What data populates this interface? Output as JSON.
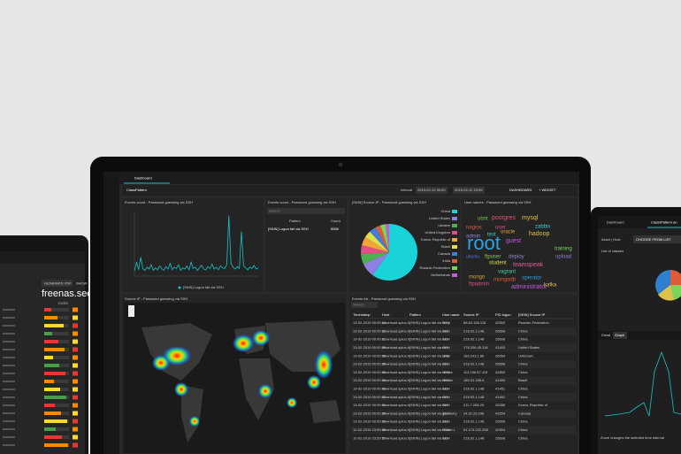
{
  "laptop": {
    "tab": "Dashboard",
    "dashboard_title": "ClassPattern",
    "interval_label": "Interval",
    "date_from": "2019-02-12 00:00",
    "date_to": "2019-02-12 23:59",
    "dashboard_button": "DASHBOARD",
    "widget_button": "+ WIDGET",
    "events_count": {
      "type": "line",
      "title": "Events count - Password guessing via SSH",
      "legend": "[SKIN] Logon fail via SSH",
      "color": "#19c3c8",
      "ylim": [
        0,
        100
      ],
      "values": [
        8,
        22,
        10,
        30,
        12,
        9,
        14,
        11,
        18,
        9,
        13,
        10,
        16,
        12,
        9,
        15,
        11,
        20,
        10,
        14,
        12,
        18,
        9,
        13,
        11,
        16,
        10,
        22,
        12,
        14,
        9,
        13,
        17,
        11,
        10,
        15,
        12,
        19,
        11,
        14,
        10,
        16,
        13,
        12,
        18,
        95,
        20,
        14,
        11,
        15,
        12,
        70,
        16,
        13,
        10,
        14,
        12,
        17,
        11,
        13
      ]
    },
    "pattern_table": {
      "title": "Events count - Password guessing via SSH",
      "search": "Search",
      "headers": [
        "Pattern",
        "Count"
      ],
      "rows": [
        [
          "[SKIN] Logon fail via SSH",
          "8585"
        ]
      ]
    },
    "source_ip": {
      "type": "pie",
      "title": "[SKIN] Source IP - Password guessing via SSH",
      "slices": [
        {
          "name": "China",
          "value": 60,
          "color": "#19d3d8"
        },
        {
          "name": "United States",
          "value": 8,
          "color": "#8f7fe0"
        },
        {
          "name": "Ukraine",
          "value": 6,
          "color": "#4caf50"
        },
        {
          "name": "United Kingdom",
          "value": 5,
          "color": "#e04f8a"
        },
        {
          "name": "Korea, Republic of",
          "value": 5,
          "color": "#f2a33a"
        },
        {
          "name": "Brazil",
          "value": 4,
          "color": "#e2e04a"
        },
        {
          "name": "Canada",
          "value": 4,
          "color": "#3f7de0"
        },
        {
          "name": "India",
          "value": 3,
          "color": "#e05a3a"
        },
        {
          "name": "Russian Federation",
          "value": 3,
          "color": "#7bd35a"
        },
        {
          "name": "Netherlands",
          "value": 2,
          "color": "#c35ae0"
        }
      ]
    },
    "user_names": {
      "title": "User names - Password guessing via SSH",
      "words": [
        {
          "text": "root",
          "color": "#2fa3e0"
        },
        {
          "text": "postgres",
          "color": "#e0567a"
        },
        {
          "text": "ubnt",
          "color": "#7fc24a"
        },
        {
          "text": "mysql",
          "color": "#e0c14a"
        },
        {
          "text": "nagios",
          "color": "#e05a3a"
        },
        {
          "text": "admin",
          "color": "#8f7fe0"
        },
        {
          "text": "test",
          "color": "#3fd0d0"
        },
        {
          "text": "oracle",
          "color": "#e0a03a"
        },
        {
          "text": "guest",
          "color": "#c35ae0"
        },
        {
          "text": "user",
          "color": "#e04f8a"
        },
        {
          "text": "ftpuser",
          "color": "#7bd35a"
        },
        {
          "text": "hadoop",
          "color": "#e0c14a"
        },
        {
          "text": "ubuntu",
          "color": "#3f7de0"
        },
        {
          "text": "student",
          "color": "#e0e04a"
        },
        {
          "text": "teamspeak",
          "color": "#e05a9a"
        },
        {
          "text": "deploy",
          "color": "#8f7fe0"
        },
        {
          "text": "vagrant",
          "color": "#3fd0a0"
        },
        {
          "text": "mongo",
          "color": "#e0a03a"
        },
        {
          "text": "mongodb",
          "color": "#e05a3a"
        },
        {
          "text": "operator",
          "color": "#2fa3e0"
        },
        {
          "text": "administrator",
          "color": "#c35ae0"
        },
        {
          "text": "ftpadmin",
          "color": "#e04f8a"
        },
        {
          "text": "training",
          "color": "#7bd35a"
        },
        {
          "text": "kafka",
          "color": "#e0c14a"
        },
        {
          "text": "zabbix",
          "color": "#3fd0d0"
        },
        {
          "text": "upload",
          "color": "#8f7fe0"
        }
      ]
    },
    "map": {
      "title": "Source IP - Password guessing via SSH"
    },
    "events_table": {
      "title": "Events list - Password guessing via SSH",
      "search": "Search",
      "headers": [
        "Timestamp",
        "Host",
        "Pattern",
        "User name",
        "Source IP",
        "PID logon",
        "[SKIN] Source IP"
      ],
      "rows": [
        [
          "13-02-2019 00:00:14",
          "download.sploo.it",
          "[SKIN] Logon fail via SSH",
          "ftuny",
          "86.84.156.118",
          "42903",
          "Russian Federation"
        ],
        [
          "13-02-2019 00:00:12",
          "download.sploo.it",
          "[SKIN] Logon fail via SSH",
          "root",
          "218.92.1.148",
          "25608",
          "China"
        ],
        [
          "13-02-2019 00:00:11",
          "download.sploo.it",
          "[SKIN] Logon fail via SSH",
          "root",
          "218.92.1.148",
          "25608",
          "China"
        ],
        [
          "13-02-2019 00:00:09",
          "download.sploo.it",
          "[SKIN] Logon fail via SSH",
          "root",
          "178.206.45.118",
          "41463",
          "United States"
        ],
        [
          "13-02-2019 00:00:08",
          "download.sploo.it",
          "[SKIN] Logon fail via SSH",
          "cells",
          "183.243.1.86",
          "26054",
          "Unknown"
        ],
        [
          "13-02-2019 00:00:06",
          "download.sploo.it",
          "[SKIN] Logon fail via SSH",
          "root",
          "218.92.1.148",
          "25608",
          "China"
        ],
        [
          "13-02-2019 00:00:05",
          "download.sploo.it",
          "[SKIN] Logon fail via SSH",
          "centos",
          "113.196.87.115",
          "42853",
          "China"
        ],
        [
          "13-02-2019 00:00:04",
          "download.sploo.it",
          "[SKIN] Logon fail via SSH",
          "vendor",
          "189.31.168.6",
          "41460",
          "Brazil"
        ],
        [
          "13-02-2019 00:00:03",
          "download.sploo.it",
          "[SKIN] Logon fail via SSH",
          "root",
          "218.92.1.148",
          "41461",
          "China"
        ],
        [
          "13-02-2019 00:00:02",
          "download.sploo.it",
          "[SKIN] Logon fail via SSH",
          "root",
          "218.92.1.148",
          "41461",
          "China"
        ],
        [
          "13-02-2019 00:00:01",
          "download.sploo.it",
          "[SKIN] Logon fail via SSH",
          "root",
          "211.7.208.25",
          "26086",
          "Korea, Republic of"
        ],
        [
          "13-02-2019 00:00:00",
          "download.sploo.it",
          "[SKIN] Logon fail via SSH",
          "geometry",
          "24.37.29.246",
          "42654",
          "Canada"
        ],
        [
          "13-02-2019 00:00:00",
          "download.sploo.it",
          "[SKIN] Logon fail via SSH",
          "root",
          "218.92.1.148",
          "25608",
          "China"
        ],
        [
          "12-02-2019 23:59:58",
          "download.sploo.it",
          "[SKIN] Logon fail via SSH",
          "tcluser-t",
          "61.174.222.258",
          "42904",
          "China"
        ],
        [
          "12-02-2019 23:59:57",
          "download.sploo.it",
          "[SKIN] Logon fail via SSH",
          "root",
          "218.92.1.148",
          "25608",
          "China"
        ]
      ]
    }
  },
  "left_device": {
    "host": "freenas.secure",
    "generate_button": "GENERATE PDF",
    "show_button": "SHOW",
    "column": "CVSS"
  },
  "right_device": {
    "tab": "Dashboard",
    "tab_active": "Class/Pattern an",
    "asset_label": "Asset | Host",
    "choose_button": "CHOOSE FROM LIST",
    "list_label": "List of classes",
    "detail_tab": "Detail",
    "graph_tab": "Graph",
    "footer": "Zoom changes the selected time interval"
  }
}
